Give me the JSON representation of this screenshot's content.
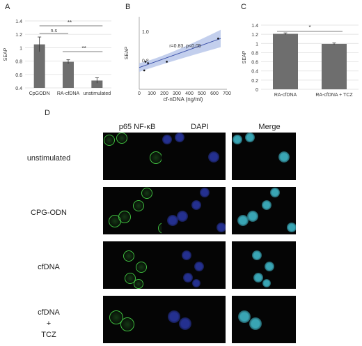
{
  "panels": {
    "a": "A",
    "b": "B",
    "c": "C",
    "d": "D"
  },
  "chart_data": [
    {
      "type": "bar",
      "ylabel": "SEAP",
      "ylim": [
        0.4,
        1.4
      ],
      "yticks": [
        "0.4",
        "0.6",
        "0.8",
        "1",
        "1.2",
        "1.4"
      ],
      "categories": [
        "CpGODN",
        "RA-cfDNA",
        "unstimulated"
      ],
      "values": [
        1.05,
        0.79,
        0.51
      ],
      "errors": [
        0.11,
        0.03,
        0.04
      ],
      "annotations": [
        "n.s",
        "**",
        "**"
      ],
      "grid": true
    },
    {
      "type": "scatter",
      "xlabel": "cf-nDNA (ng/ml)",
      "ylabel": "SEAP",
      "xlim": [
        0,
        700
      ],
      "ylim": [
        0.6,
        1.1
      ],
      "xticks": [
        "0",
        "100",
        "200",
        "300",
        "400",
        "500",
        "600",
        "700"
      ],
      "yticks": [
        "0.8",
        "1.0"
      ],
      "points": [
        [
          40,
          0.73
        ],
        [
          50,
          0.79
        ],
        [
          70,
          0.78
        ],
        [
          220,
          0.79
        ],
        [
          630,
          0.95
        ]
      ],
      "fit": {
        "x": [
          0,
          650
        ],
        "y": [
          0.75,
          0.95
        ]
      },
      "annotation": "r=0.83, p<0.05"
    },
    {
      "type": "bar",
      "ylabel": "SEAP",
      "ylim": [
        0,
        1.4
      ],
      "yticks": [
        "0",
        "0.2",
        "0.4",
        "0.6",
        "0.8",
        "1",
        "1.2",
        "1.4"
      ],
      "categories": [
        "RA-cfDNA",
        "RA-cfDNA + TCZ"
      ],
      "values": [
        1.21,
        0.99
      ],
      "errors": [
        0.02,
        0.02
      ],
      "annotations": [
        "*"
      ],
      "grid": true
    }
  ],
  "microscopy": {
    "columns": [
      "p65 NF-κB",
      "DAPI",
      "Merge"
    ],
    "rows": [
      "unstimulated",
      "CPG-ODN",
      "cfDNA",
      "cfDNA\n+\nTCZ"
    ],
    "channel_colors": {
      "p65": "#3fbf3f",
      "dapi": "#2f3fbf",
      "merge": "#3fb7c8"
    }
  }
}
